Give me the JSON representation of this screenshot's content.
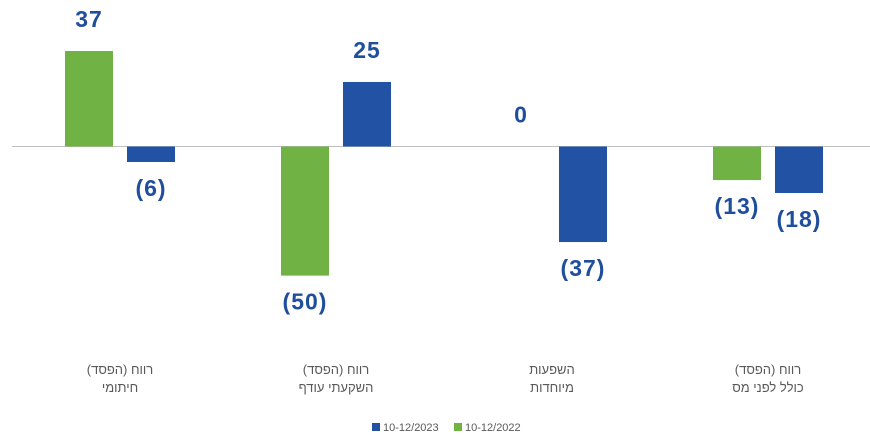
{
  "chart_data": {
    "type": "bar",
    "categories": [
      "רווח (הפסד)\nחיתומי",
      "רווח (הפסד)\nהשקעתי עודף",
      "השפעות\nמיוחדות",
      "רווח (הפסד)\nכולל לפני מס"
    ],
    "series": [
      {
        "name": "10-12/2022",
        "color": "#70b244",
        "values": [
          37,
          -50,
          0,
          -13
        ],
        "value_labels": [
          "37",
          "(50)",
          "0",
          "(13)"
        ]
      },
      {
        "name": "10-12/2023",
        "color": "#2152a3",
        "values": [
          -6,
          25,
          -37,
          -18
        ],
        "value_labels": [
          "(6)",
          "25",
          "(37)",
          "(18)"
        ]
      }
    ],
    "ylim": [
      -73,
      49
    ]
  }
}
